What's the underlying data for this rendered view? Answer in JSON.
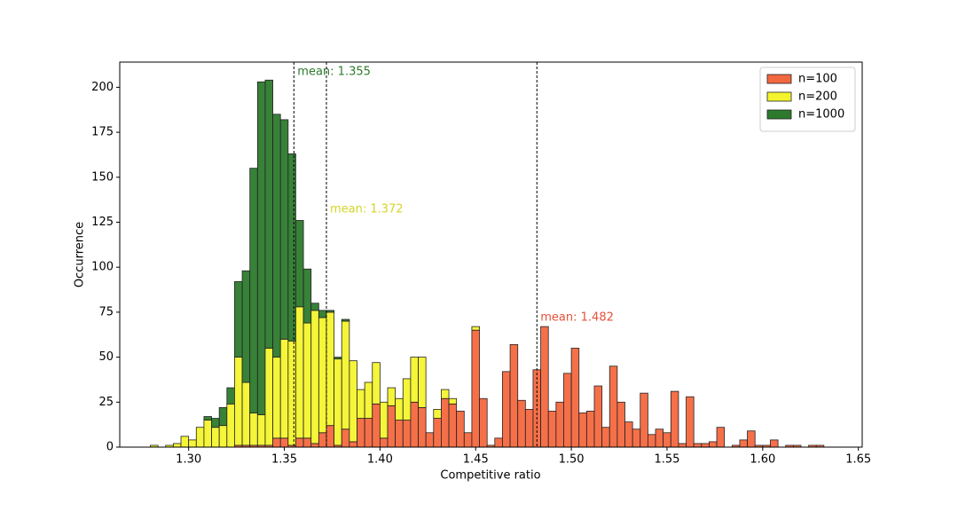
{
  "chart_data": {
    "type": "histogram",
    "xlabel": "Competitive ratio",
    "ylabel": "Occurrence",
    "bins": [
      1.28,
      1.284,
      1.288,
      1.292,
      1.296,
      1.3,
      1.304,
      1.308,
      1.312,
      1.316,
      1.32,
      1.324,
      1.328,
      1.332,
      1.336,
      1.34,
      1.344,
      1.348,
      1.352,
      1.356,
      1.36,
      1.364,
      1.368,
      1.372,
      1.376,
      1.38,
      1.384,
      1.388,
      1.392,
      1.396,
      1.4,
      1.404,
      1.408,
      1.412,
      1.416,
      1.42,
      1.424,
      1.428,
      1.432,
      1.436,
      1.44,
      1.444,
      1.448,
      1.452,
      1.456,
      1.46,
      1.464,
      1.468,
      1.472,
      1.476,
      1.48,
      1.484,
      1.488,
      1.492,
      1.496,
      1.5,
      1.504,
      1.508,
      1.512,
      1.516,
      1.52,
      1.524,
      1.528,
      1.532,
      1.536,
      1.54,
      1.544,
      1.548,
      1.552,
      1.556,
      1.56,
      1.564,
      1.568,
      1.572,
      1.576,
      1.58,
      1.584,
      1.588,
      1.592,
      1.596,
      1.6,
      1.604,
      1.608,
      1.612,
      1.616,
      1.62,
      1.624,
      1.628,
      1.632
    ],
    "stacked": true,
    "series": [
      {
        "name": "n=100",
        "color": "#f4683f",
        "values": [
          0,
          0,
          0,
          0,
          0,
          0,
          0,
          0,
          0,
          0,
          0,
          1,
          1,
          1,
          1,
          1,
          5,
          5,
          1,
          5,
          5,
          2,
          8,
          12,
          1,
          10,
          3,
          16,
          16,
          24,
          5,
          23,
          15,
          15,
          25,
          22,
          8,
          16,
          27,
          24,
          20,
          8,
          65,
          27,
          1,
          5,
          42,
          57,
          26,
          21,
          43,
          67,
          20,
          25,
          41,
          55,
          19,
          20,
          34,
          11,
          45,
          25,
          14,
          10,
          30,
          7,
          10,
          8,
          31,
          2,
          28,
          2,
          2,
          3,
          11,
          0,
          1,
          4,
          9,
          1,
          1,
          4,
          0,
          1,
          1,
          0,
          1,
          1
        ]
      },
      {
        "name": "n=200",
        "color": "#f4f42e",
        "values": [
          1,
          0,
          1,
          2,
          6,
          4,
          11,
          15,
          11,
          12,
          24,
          49,
          35,
          18,
          17,
          54,
          45,
          55,
          58,
          73,
          64,
          74,
          64,
          63,
          48,
          60,
          45,
          16,
          20,
          23,
          20,
          10,
          12,
          23,
          25,
          28,
          0,
          5,
          5,
          3,
          0,
          0,
          2,
          0,
          0,
          0,
          0,
          0,
          0,
          0,
          0,
          0,
          0,
          0,
          0,
          0,
          0,
          0,
          0,
          0,
          0,
          0,
          0,
          0,
          0,
          0,
          0,
          0,
          0,
          0,
          0,
          0,
          0,
          0,
          0,
          0,
          0,
          0,
          0,
          0,
          0,
          0,
          0,
          0,
          0,
          0,
          0,
          0
        ]
      },
      {
        "name": "n=1000",
        "color": "#2d7a2d",
        "values": [
          0,
          0,
          0,
          0,
          0,
          0,
          0,
          2,
          5,
          10,
          9,
          42,
          62,
          136,
          185,
          149,
          135,
          122,
          104,
          48,
          30,
          4,
          4,
          1,
          1,
          1,
          0,
          0,
          0,
          0,
          0,
          0,
          0,
          0,
          0,
          0,
          0,
          0,
          0,
          0,
          0,
          0,
          0,
          0,
          0,
          0,
          0,
          0,
          0,
          0,
          0,
          0,
          0,
          0,
          0,
          0,
          0,
          0,
          0,
          0,
          0,
          0,
          0,
          0,
          0,
          0,
          0,
          0,
          0,
          0,
          0,
          0,
          0,
          0,
          0,
          0,
          0,
          0,
          0,
          0,
          0,
          0,
          0,
          0,
          0,
          0,
          0,
          0
        ]
      }
    ],
    "annotations": [
      {
        "x": 1.355,
        "label": "mean: 1.355",
        "color": "#2d7a2d"
      },
      {
        "x": 1.372,
        "label": "mean: 1.372",
        "color": "#d4d42a"
      },
      {
        "x": 1.482,
        "label": "mean: 1.482",
        "color": "#e8503a"
      }
    ],
    "xlim": [
      1.264,
      1.652
    ],
    "ylim": [
      0,
      214
    ],
    "xticks": [
      {
        "value": 1.3,
        "label": "1.30"
      },
      {
        "value": 1.35,
        "label": "1.35"
      },
      {
        "value": 1.4,
        "label": "1.40"
      },
      {
        "value": 1.45,
        "label": "1.45"
      },
      {
        "value": 1.5,
        "label": "1.50"
      },
      {
        "value": 1.55,
        "label": "1.55"
      },
      {
        "value": 1.6,
        "label": "1.60"
      },
      {
        "value": 1.65,
        "label": "1.65"
      }
    ],
    "yticks": [
      0,
      25,
      50,
      75,
      100,
      125,
      150,
      175,
      200
    ],
    "legend": "upper right"
  }
}
